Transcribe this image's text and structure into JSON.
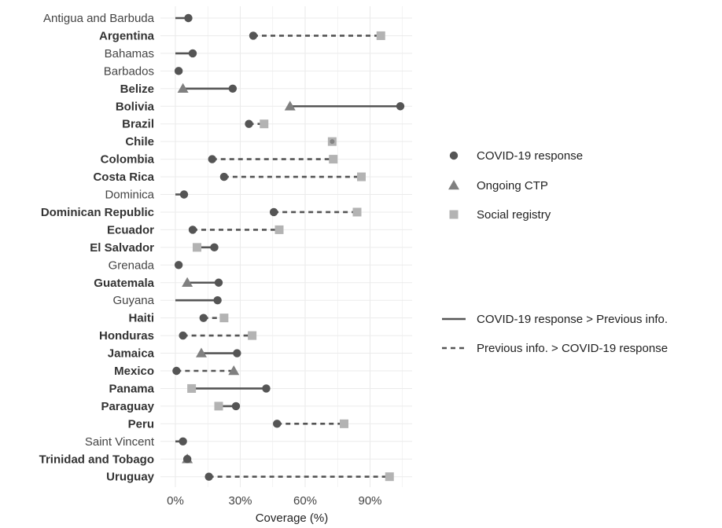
{
  "chart_data": {
    "type": "scatter",
    "subtype": "dumbbell",
    "xlabel": "Coverage (%)",
    "xlim": [
      0,
      105
    ],
    "x_ticks": [
      0,
      30,
      60,
      90
    ],
    "x_tick_labels": [
      "0%",
      "30%",
      "60%",
      "90%"
    ],
    "grid": true,
    "legend_position": "right",
    "colors": {
      "covid": "#555555",
      "ongoing": "#808080",
      "registry": "#b3b3b3",
      "grid": "#ebebeb"
    },
    "legend": {
      "points": [
        {
          "key": "covid",
          "label": "COVID-19 response",
          "shape": "circle"
        },
        {
          "key": "ongoing",
          "label": "Ongoing CTP",
          "shape": "triangle"
        },
        {
          "key": "registry",
          "label": "Social registry",
          "shape": "square"
        }
      ],
      "lines": [
        {
          "key": "solid",
          "label": "COVID-19 response > Previous info."
        },
        {
          "key": "dashed",
          "label": "Previous info. > COVID-19 response"
        }
      ]
    },
    "rows": [
      {
        "country": "Antigua and Barbuda",
        "bold": false,
        "covid": 6,
        "prev_type": null,
        "prev": 0,
        "line": "solid"
      },
      {
        "country": "Argentina",
        "bold": true,
        "covid": 36,
        "prev_type": "registry",
        "prev": 95,
        "line": "dashed"
      },
      {
        "country": "Bahamas",
        "bold": false,
        "covid": 8,
        "prev_type": null,
        "prev": 0,
        "line": "solid"
      },
      {
        "country": "Barbados",
        "bold": false,
        "covid": 1.5,
        "prev_type": null,
        "prev": 0,
        "line": "solid"
      },
      {
        "country": "Belize",
        "bold": true,
        "covid": 26.5,
        "prev_type": "ongoing",
        "prev": 3.5,
        "line": "solid"
      },
      {
        "country": "Bolivia",
        "bold": true,
        "covid": 104,
        "prev_type": "ongoing",
        "prev": 53,
        "line": "solid"
      },
      {
        "country": "Brazil",
        "bold": true,
        "covid": 34,
        "prev_type": "registry",
        "prev": 41,
        "line": "dashed"
      },
      {
        "country": "Chile",
        "bold": true,
        "covid": 72.5,
        "prev_type": "registry",
        "prev": 72.5,
        "line": "dashed"
      },
      {
        "country": "Colombia",
        "bold": true,
        "covid": 17,
        "prev_type": "registry",
        "prev": 73,
        "line": "dashed"
      },
      {
        "country": "Costa Rica",
        "bold": true,
        "covid": 22.5,
        "prev_type": "registry",
        "prev": 86,
        "line": "dashed"
      },
      {
        "country": "Dominica",
        "bold": false,
        "covid": 4,
        "prev_type": null,
        "prev": 0,
        "line": "solid"
      },
      {
        "country": "Dominican Republic",
        "bold": true,
        "covid": 45.5,
        "prev_type": "registry",
        "prev": 84,
        "line": "dashed"
      },
      {
        "country": "Ecuador",
        "bold": true,
        "covid": 8,
        "prev_type": "registry",
        "prev": 48,
        "line": "dashed"
      },
      {
        "country": "El Salvador",
        "bold": true,
        "covid": 18,
        "prev_type": "registry",
        "prev": 10,
        "line": "solid"
      },
      {
        "country": "Grenada",
        "bold": false,
        "covid": 1.5,
        "prev_type": null,
        "prev": 0,
        "line": "solid"
      },
      {
        "country": "Guatemala",
        "bold": true,
        "covid": 20,
        "prev_type": "ongoing",
        "prev": 5.5,
        "line": "solid"
      },
      {
        "country": "Guyana",
        "bold": false,
        "covid": 19.5,
        "prev_type": null,
        "prev": 0,
        "line": "solid"
      },
      {
        "country": "Haiti",
        "bold": true,
        "covid": 13,
        "prev_type": "registry",
        "prev": 22.5,
        "line": "dashed"
      },
      {
        "country": "Honduras",
        "bold": true,
        "covid": 3.5,
        "prev_type": "registry",
        "prev": 35.5,
        "line": "dashed"
      },
      {
        "country": "Jamaica",
        "bold": true,
        "covid": 28.5,
        "prev_type": "ongoing",
        "prev": 12,
        "line": "solid"
      },
      {
        "country": "Mexico",
        "bold": true,
        "covid": 0.5,
        "prev_type": "ongoing",
        "prev": 27,
        "line": "dashed"
      },
      {
        "country": "Panama",
        "bold": true,
        "covid": 42,
        "prev_type": "registry",
        "prev": 7.5,
        "line": "solid"
      },
      {
        "country": "Paraguay",
        "bold": true,
        "covid": 28,
        "prev_type": "registry",
        "prev": 20,
        "line": "solid"
      },
      {
        "country": "Peru",
        "bold": true,
        "covid": 47,
        "prev_type": "registry",
        "prev": 78,
        "line": "dashed"
      },
      {
        "country": "Saint Vincent",
        "bold": false,
        "covid": 3.5,
        "prev_type": null,
        "prev": 0,
        "line": "solid"
      },
      {
        "country": "Trinidad and Tobago",
        "bold": true,
        "covid": 5.5,
        "prev_type": "ongoing",
        "prev": 5.5,
        "line": "solid"
      },
      {
        "country": "Uruguay",
        "bold": true,
        "covid": 15.5,
        "prev_type": "registry",
        "prev": 99,
        "line": "dashed"
      }
    ]
  }
}
